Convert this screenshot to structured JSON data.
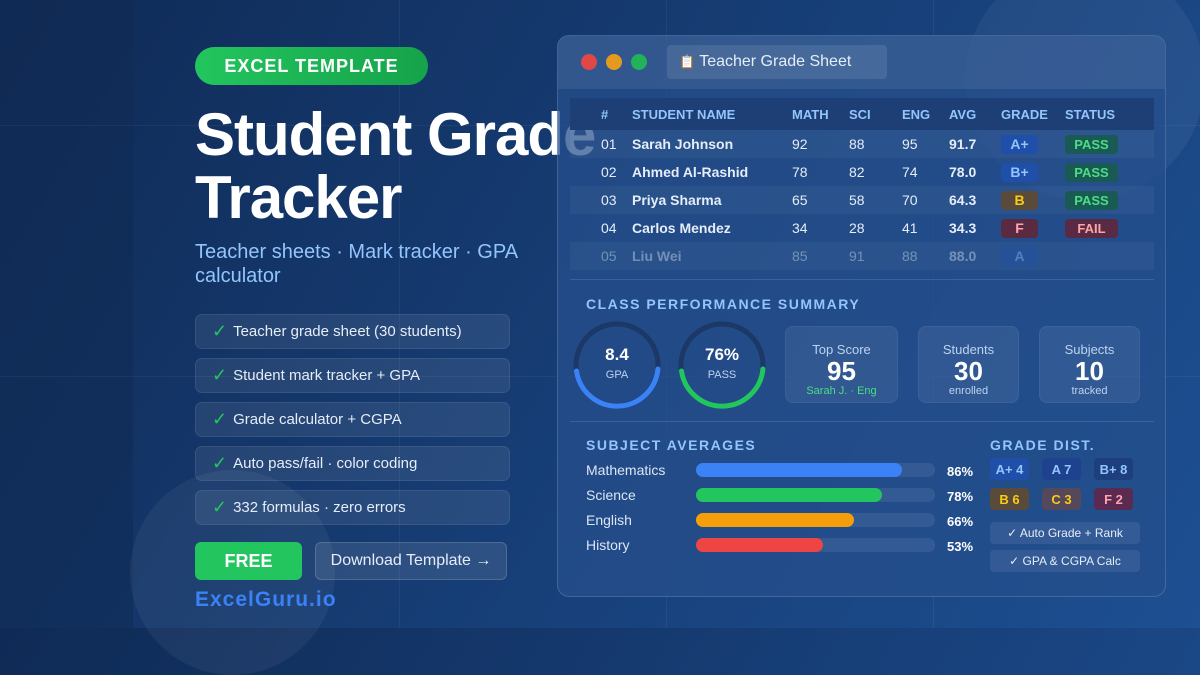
{
  "badge": "EXCEL TEMPLATE",
  "title_line1": "Student Grade",
  "title_line2": "Tracker",
  "subtitle": "Teacher sheets · Mark tracker · GPA calculator",
  "features": [
    "Teacher grade sheet (30 students)",
    "Student mark tracker + GPA",
    "Grade calculator + CGPA",
    "Auto pass/fail · color coding",
    "332 formulas · zero errors"
  ],
  "check": "✓",
  "brand": "ExcelGuru.io",
  "free_label": "FREE",
  "download_label": "Download Template →",
  "window": {
    "tab_icon": "📋",
    "tab_title": "Teacher Grade Sheet"
  },
  "table": {
    "headers": [
      "#",
      "STUDENT NAME",
      "MATH",
      "SCI",
      "ENG",
      "AVG",
      "GRADE",
      "STATUS"
    ],
    "rows": [
      {
        "n": "01",
        "name": "Sarah Johnson",
        "math": "92",
        "sci": "88",
        "eng": "95",
        "avg": "91.7",
        "grade": "A+",
        "status": "PASS"
      },
      {
        "n": "02",
        "name": "Ahmed Al-Rashid",
        "math": "78",
        "sci": "82",
        "eng": "74",
        "avg": "78.0",
        "grade": "B+",
        "status": "PASS"
      },
      {
        "n": "03",
        "name": "Priya Sharma",
        "math": "65",
        "sci": "58",
        "eng": "70",
        "avg": "64.3",
        "grade": "B",
        "status": "PASS"
      },
      {
        "n": "04",
        "name": "Carlos Mendez",
        "math": "34",
        "sci": "28",
        "eng": "41",
        "avg": "34.3",
        "grade": "F",
        "status": "FAIL"
      },
      {
        "n": "05",
        "name": "Liu Wei",
        "math": "85",
        "sci": "91",
        "eng": "88",
        "avg": "88.0",
        "grade": "A",
        "status": ""
      }
    ]
  },
  "summary": {
    "title": "CLASS PERFORMANCE SUMMARY",
    "gpa": {
      "value": "8.4",
      "label": "GPA",
      "color": "#3b82f6"
    },
    "pass": {
      "value": "76%",
      "label": "PASS",
      "color": "#22c55e"
    },
    "stats": [
      {
        "label": "Top Score",
        "value": "95",
        "sub": "Sarah J. · Eng"
      },
      {
        "label": "Students",
        "value": "30",
        "sub": "enrolled"
      },
      {
        "label": "Subjects",
        "value": "10",
        "sub": "tracked"
      }
    ]
  },
  "averages": {
    "title": "SUBJECT AVERAGES",
    "items": [
      {
        "label": "Mathematics",
        "pct": 86,
        "text": "86%",
        "color": "#3b82f6"
      },
      {
        "label": "Science",
        "pct": 78,
        "text": "78%",
        "color": "#22c55e"
      },
      {
        "label": "English",
        "pct": 66,
        "text": "66%",
        "color": "#f59e0b"
      },
      {
        "label": "History",
        "pct": 53,
        "text": "53%",
        "color": "#ef4444"
      }
    ]
  },
  "dist": {
    "title": "GRADE DIST.",
    "items": [
      "A+ 4",
      "A 7",
      "B+ 8",
      "B 6",
      "C 3",
      "F 2"
    ],
    "notes": [
      "✓ Auto Grade + Rank",
      "✓ GPA & CGPA Calc"
    ]
  }
}
